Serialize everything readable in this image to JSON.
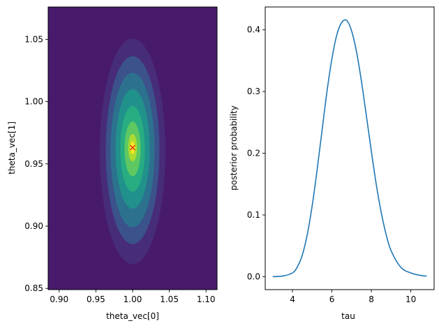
{
  "colors": {
    "viridis": [
      "#440154",
      "#482878",
      "#3e4989",
      "#31688e",
      "#26828e",
      "#1f9e89",
      "#35b779",
      "#6ece58",
      "#b5de2b",
      "#fde725"
    ],
    "background_level": "#481a6c",
    "line": "#1f77b4",
    "marker": "#e8191c"
  },
  "chart_data": [
    {
      "type": "contourf",
      "title": "",
      "xlabel": "theta_vec[0]",
      "ylabel": "theta_vec[1]",
      "xlim": [
        0.885,
        1.115
      ],
      "ylim": [
        0.849,
        1.076
      ],
      "xticks": [
        0.9,
        0.95,
        1.0,
        1.05,
        1.1
      ],
      "xtick_labels": [
        "0.90",
        "0.95",
        "1.00",
        "1.05",
        "1.10"
      ],
      "yticks": [
        0.85,
        0.9,
        0.95,
        1.0,
        1.05
      ],
      "ytick_labels": [
        "0.85",
        "0.90",
        "0.95",
        "1.00",
        "1.05"
      ],
      "center": [
        1.0,
        0.963
      ],
      "levels": [
        {
          "rx": 0.0445,
          "ry": 0.0905,
          "cy": 0.96,
          "color": "#472c7a"
        },
        {
          "rx": 0.0365,
          "ry": 0.0755,
          "cy": 0.961,
          "color": "#3b528b"
        },
        {
          "rx": 0.03,
          "ry": 0.062,
          "cy": 0.961,
          "color": "#2c728e"
        },
        {
          "rx": 0.0232,
          "ry": 0.048,
          "cy": 0.962,
          "color": "#21918c"
        },
        {
          "rx": 0.0167,
          "ry": 0.0345,
          "cy": 0.962,
          "color": "#27ad81"
        },
        {
          "rx": 0.011,
          "ry": 0.022,
          "cy": 0.962,
          "color": "#5ec962"
        },
        {
          "rx": 0.006,
          "ry": 0.011,
          "cy": 0.963,
          "color": "#addc30"
        },
        {
          "rx": 0.003,
          "ry": 0.005,
          "cy": 0.963,
          "color": "#fde725"
        }
      ],
      "marker": {
        "x": 1.0,
        "y": 0.963,
        "symbol": "x"
      }
    },
    {
      "type": "line",
      "title": "",
      "xlabel": "tau",
      "ylabel": "posterior probability",
      "xlim": [
        2.62,
        11.18
      ],
      "ylim": [
        -0.021,
        0.437
      ],
      "xticks": [
        4,
        6,
        8,
        10
      ],
      "xtick_labels": [
        "4",
        "6",
        "8",
        "10"
      ],
      "yticks": [
        0.0,
        0.1,
        0.2,
        0.3,
        0.4
      ],
      "ytick_labels": [
        "0.0",
        "0.1",
        "0.2",
        "0.3",
        "0.4"
      ],
      "series": [
        {
          "x": [
            3.0,
            3.5,
            4.0,
            4.25,
            4.5,
            4.75,
            5.0,
            5.25,
            5.5,
            5.75,
            6.0,
            6.25,
            6.5,
            6.75,
            7.0,
            7.25,
            7.5,
            7.75,
            8.0,
            8.25,
            8.5,
            8.75,
            9.0,
            9.5,
            10.0,
            10.5,
            10.8
          ],
          "y": [
            0.0,
            0.001,
            0.006,
            0.016,
            0.035,
            0.068,
            0.115,
            0.173,
            0.237,
            0.3,
            0.353,
            0.392,
            0.412,
            0.415,
            0.398,
            0.364,
            0.316,
            0.26,
            0.203,
            0.149,
            0.104,
            0.068,
            0.042,
            0.015,
            0.006,
            0.002,
            0.001
          ]
        }
      ]
    }
  ]
}
